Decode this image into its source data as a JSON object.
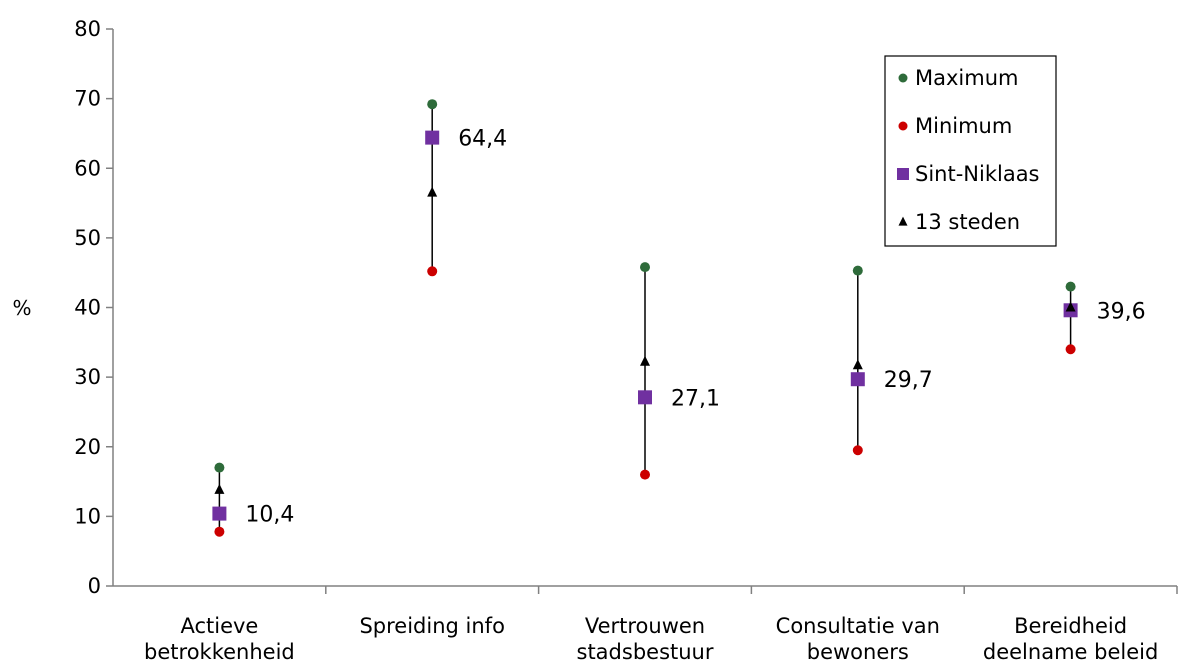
{
  "chart_data": {
    "type": "scatter",
    "ylabel": "%",
    "ylim": [
      0,
      80
    ],
    "yticks": [
      0,
      10,
      20,
      30,
      40,
      50,
      60,
      70,
      80
    ],
    "grid": false,
    "legend_position": "top-right",
    "categories": [
      [
        "Actieve",
        "betrokkenheid"
      ],
      [
        "Spreiding info"
      ],
      [
        "Vertrouwen",
        "stadsbestuur"
      ],
      [
        "Consultatie van",
        "bewoners"
      ],
      [
        "Bereidheid",
        "deelname beleid"
      ]
    ],
    "series": [
      {
        "name": "Maximum",
        "marker": "circle",
        "color": "#2e6b3a",
        "values": [
          17.0,
          69.2,
          45.8,
          45.3,
          43.0
        ]
      },
      {
        "name": "Minimum",
        "marker": "circle",
        "color": "#cc0000",
        "values": [
          7.8,
          45.2,
          16.0,
          19.5,
          34.0
        ]
      },
      {
        "name": "Sint-Niklaas",
        "marker": "square",
        "color": "#7030a0",
        "values": [
          10.4,
          64.4,
          27.1,
          29.7,
          39.6
        ]
      },
      {
        "name": "13 steden",
        "marker": "triangle",
        "color": "#000000",
        "values": [
          13.8,
          56.5,
          32.2,
          31.7,
          40.0
        ]
      }
    ],
    "data_labels": [
      "10,4",
      "64,4",
      "27,1",
      "29,7",
      "39,6"
    ]
  }
}
